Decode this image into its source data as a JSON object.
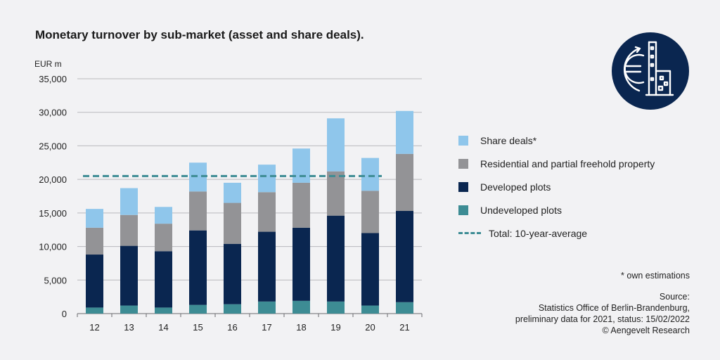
{
  "header": {
    "title": "Monetary turnover by sub-market (asset and share deals)."
  },
  "chart_data": {
    "type": "bar",
    "stacked": true,
    "categories": [
      "12",
      "13",
      "14",
      "15",
      "16",
      "17",
      "18",
      "19",
      "20",
      "21"
    ],
    "ylabel": "EUR m",
    "ylim": [
      0,
      35000
    ],
    "yticks": [
      "0",
      "5,000",
      "10,000",
      "15,000",
      "20,000",
      "25,000",
      "30,000",
      "35,000"
    ],
    "ytick_values": [
      0,
      5000,
      10000,
      15000,
      20000,
      25000,
      30000,
      35000
    ],
    "grid": true,
    "legend_position": "right",
    "series": [
      {
        "name": "Undeveloped plots",
        "color": "#3d8c94",
        "values": [
          900,
          1200,
          900,
          1300,
          1400,
          1800,
          1900,
          1800,
          1200,
          1700
        ]
      },
      {
        "name": "Developed plots",
        "color": "#0a2650",
        "values": [
          7900,
          8900,
          8400,
          11100,
          9000,
          10400,
          10900,
          12800,
          10800,
          13600
        ]
      },
      {
        "name": "Residential and partial freehold property",
        "color": "#939396",
        "values": [
          4000,
          4600,
          4100,
          5800,
          6100,
          5900,
          6700,
          6600,
          6300,
          8500
        ]
      },
      {
        "name": "Share deals*",
        "color": "#8fc6eb",
        "values": [
          2800,
          4000,
          2500,
          4300,
          3000,
          4100,
          5100,
          7900,
          4900,
          6400
        ]
      }
    ],
    "average_line": {
      "name": "Total: 10-year-average",
      "value": 20500,
      "color": "#3d8c94",
      "from": "12",
      "to": "20"
    }
  },
  "notes": {
    "footnote": "* own estimations",
    "source_lines": [
      "Source:",
      "Statistics Office of Berlin-Brandenburg,",
      "preliminary data for 2021, status: 15/02/2022",
      "© Aengevelt Research"
    ]
  },
  "logo": {
    "icon": "euro-building-icon",
    "color": "#0a2650"
  }
}
